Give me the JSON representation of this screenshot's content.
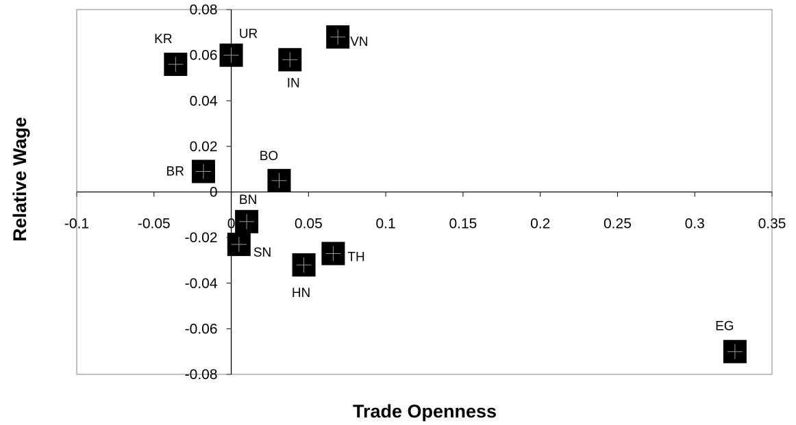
{
  "chart_data": {
    "type": "scatter",
    "title": "",
    "xlabel": "Trade Openness",
    "ylabel": "Relative Wage",
    "xlim": [
      -0.1,
      0.35
    ],
    "ylim": [
      -0.08,
      0.08
    ],
    "x_ticks": [
      "-0.1",
      "-0.05",
      "0",
      "0.05",
      "0.1",
      "0.15",
      "0.2",
      "0.25",
      "0.3",
      "0.35"
    ],
    "y_ticks": [
      "-0.08",
      "-0.06",
      "-0.04",
      "-0.02",
      "0",
      "0.02",
      "0.04",
      "0.06",
      "0.08"
    ],
    "grid": false,
    "marker": "filled square with cross",
    "marker_color": "#000000",
    "points": [
      {
        "label": "KR",
        "x": -0.036,
        "y": 0.056
      },
      {
        "label": "UR",
        "x": 0.0,
        "y": 0.06
      },
      {
        "label": "IN",
        "x": 0.038,
        "y": 0.058
      },
      {
        "label": "VN",
        "x": 0.069,
        "y": 0.068
      },
      {
        "label": "BR",
        "x": -0.018,
        "y": 0.009
      },
      {
        "label": "BO",
        "x": 0.031,
        "y": 0.005
      },
      {
        "label": "BN",
        "x": 0.01,
        "y": -0.013
      },
      {
        "label": "SN",
        "x": 0.005,
        "y": -0.023
      },
      {
        "label": "HN",
        "x": 0.047,
        "y": -0.032
      },
      {
        "label": "TH",
        "x": 0.066,
        "y": -0.027
      },
      {
        "label": "EG",
        "x": 0.326,
        "y": -0.07
      }
    ]
  }
}
